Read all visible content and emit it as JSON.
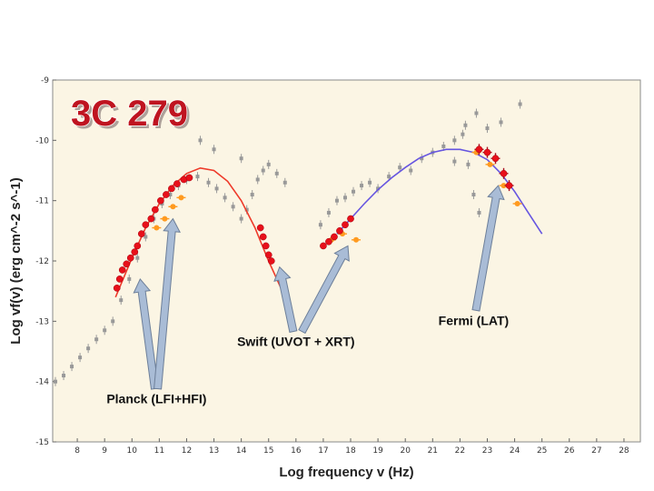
{
  "chart_data": {
    "type": "scatter",
    "title": "3C 279",
    "xlabel": "Log frequency v (Hz)",
    "ylabel": "Log vf(v) (erg cm^-2 s^-1)",
    "xlim": [
      7.1,
      28.6
    ],
    "ylim": [
      -15,
      -9
    ],
    "xticks": [
      "8",
      "9",
      "10",
      "11",
      "12",
      "13",
      "14",
      "15",
      "16",
      "17",
      "18",
      "19",
      "20",
      "21",
      "22",
      "23",
      "24",
      "25",
      "26",
      "27",
      "28"
    ],
    "yticks": [
      "-9",
      "-10",
      "-11",
      "-12",
      "-13",
      "-14",
      "-15"
    ],
    "grid": false,
    "colors": {
      "plot_bg": "#fbf5e4",
      "archival": "#999999",
      "planck_swift_fermi_points": "#e8101a",
      "alt_epoch": "#ff9a1f",
      "sync_model": "#ee3a2a",
      "ic_model": "#6655e0",
      "title_fill": "#bf1420",
      "arrow_fill": "#a9bcd6"
    },
    "series": [
      {
        "name": "Planck (LFI+HFI)",
        "x": [
          9.45,
          9.55,
          9.65,
          9.8,
          9.95,
          10.1,
          10.2,
          10.35,
          10.5,
          10.7,
          10.85,
          11.05,
          11.25,
          11.45,
          11.65,
          11.9,
          12.1
        ],
        "y": [
          -12.45,
          -12.3,
          -12.15,
          -12.05,
          -11.95,
          -11.85,
          -11.75,
          -11.55,
          -11.4,
          -11.3,
          -11.15,
          -11.0,
          -10.9,
          -10.8,
          -10.72,
          -10.65,
          -10.62
        ]
      },
      {
        "name": "Swift (UVOT + XRT)",
        "x": [
          14.7,
          14.8,
          14.9,
          15.0,
          15.1,
          17.0,
          17.2,
          17.4,
          17.6,
          17.8,
          18.0
        ],
        "y": [
          -11.45,
          -11.6,
          -11.75,
          -11.9,
          -12.0,
          -11.75,
          -11.68,
          -11.6,
          -11.5,
          -11.4,
          -11.3
        ]
      },
      {
        "name": "Fermi (LAT)",
        "x": [
          22.7,
          23.0,
          23.3,
          23.6,
          23.8
        ],
        "y": [
          -10.15,
          -10.2,
          -10.3,
          -10.55,
          -10.75
        ]
      }
    ],
    "archival": {
      "x": [
        7.2,
        7.5,
        7.8,
        8.1,
        8.4,
        8.7,
        9.0,
        9.3,
        9.6,
        9.9,
        10.2,
        10.5,
        10.8,
        11.1,
        11.4,
        11.7,
        12.0,
        12.4,
        12.8,
        13.1,
        13.4,
        13.7,
        14.0,
        14.2,
        14.4,
        14.6,
        14.8,
        15.0,
        15.3,
        15.6,
        12.5,
        13.0,
        14.0,
        16.9,
        17.2,
        17.5,
        17.8,
        18.1,
        18.4,
        18.7,
        19.0,
        19.4,
        19.8,
        20.2,
        20.6,
        21.0,
        21.4,
        21.8,
        22.1,
        22.3,
        22.5,
        22.7,
        23.0,
        23.5,
        24.2,
        22.2,
        22.6,
        21.8
      ],
      "y": [
        -14.0,
        -13.9,
        -13.75,
        -13.6,
        -13.45,
        -13.3,
        -13.15,
        -13.0,
        -12.65,
        -12.3,
        -11.95,
        -11.6,
        -11.3,
        -11.05,
        -10.9,
        -10.75,
        -10.65,
        -10.6,
        -10.7,
        -10.8,
        -10.95,
        -11.1,
        -11.3,
        -11.15,
        -10.9,
        -10.65,
        -10.5,
        -10.4,
        -10.55,
        -10.7,
        -10.0,
        -10.15,
        -10.3,
        -11.4,
        -11.2,
        -11.0,
        -10.95,
        -10.85,
        -10.75,
        -10.7,
        -10.8,
        -10.6,
        -10.45,
        -10.5,
        -10.3,
        -10.2,
        -10.1,
        -10.0,
        -9.9,
        -10.4,
        -10.9,
        -11.2,
        -9.8,
        -9.7,
        -9.4,
        -9.75,
        -9.55,
        -10.35
      ]
    },
    "alt_epoch": {
      "x": [
        10.9,
        11.2,
        11.5,
        11.8,
        17.3,
        17.7,
        18.2,
        22.6,
        23.1,
        23.6,
        24.1
      ],
      "y": [
        -11.45,
        -11.3,
        -11.1,
        -10.95,
        -11.65,
        -11.55,
        -11.65,
        -10.2,
        -10.4,
        -10.75,
        -11.05
      ]
    },
    "models": [
      {
        "name": "",
        "x": [
          9.4,
          10.0,
          10.5,
          11.0,
          11.5,
          12.0,
          12.5,
          13.0,
          13.5,
          14.0,
          14.5,
          15.0,
          15.5
        ],
        "y": [
          -12.6,
          -11.95,
          -11.45,
          -11.05,
          -10.75,
          -10.55,
          -10.46,
          -10.5,
          -10.68,
          -11.0,
          -11.45,
          -12.0,
          -12.5
        ]
      },
      {
        "name": "",
        "x": [
          17.5,
          18.0,
          18.5,
          19.0,
          19.5,
          20.0,
          20.5,
          21.0,
          21.5,
          22.0,
          22.5,
          23.0,
          23.5,
          24.0,
          24.5,
          25.0
        ],
        "y": [
          -11.55,
          -11.3,
          -11.05,
          -10.82,
          -10.62,
          -10.45,
          -10.3,
          -10.2,
          -10.15,
          -10.15,
          -10.2,
          -10.32,
          -10.55,
          -10.85,
          -11.2,
          -11.55
        ]
      }
    ],
    "annotations": [
      {
        "text": "Planck (LFI+HFI)",
        "label_x": 10.9,
        "label_y": -14.3,
        "arrows": [
          [
            10.3,
            -12.3
          ],
          [
            11.5,
            -11.3
          ]
        ]
      },
      {
        "text": "Swift (UVOT + XRT)",
        "label_x": 16.0,
        "label_y": -13.35,
        "arrows": [
          [
            15.4,
            -12.1
          ],
          [
            17.9,
            -11.75
          ]
        ]
      },
      {
        "text": "Fermi (LAT)",
        "label_x": 22.5,
        "label_y": -13.0,
        "arrows": [
          [
            23.4,
            -10.75
          ]
        ]
      }
    ]
  }
}
